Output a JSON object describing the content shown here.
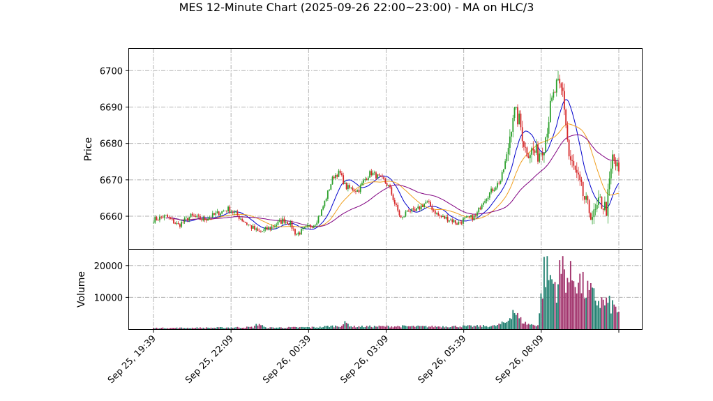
{
  "chart_data": {
    "type": "candlestick",
    "title": "MES 12-Minute Chart (2025-09-26 22:00~23:00) - MA on HLC/3",
    "price_panel": {
      "ylabel": "Price",
      "ylim": [
        6651,
        6706
      ],
      "yticks": [
        6660,
        6670,
        6680,
        6690,
        6700
      ],
      "grid": true
    },
    "volume_panel": {
      "ylabel": "Volume",
      "ylim": [
        0,
        25000
      ],
      "yticks": [
        10000,
        20000
      ],
      "grid": true
    },
    "xticks": [
      {
        "label": "Sep 25, 19:39",
        "index": 0
      },
      {
        "label": "Sep 25, 22:09",
        "index": 12.5
      },
      {
        "label": "Sep 26, 00:39",
        "index": 25
      },
      {
        "label": "Sep 26, 03:09",
        "index": 37.5
      },
      {
        "label": "Sep 26, 05:39",
        "index": 50
      },
      {
        "label": "Sep 26, 08:09",
        "index": 62.5
      },
      {
        "label": "",
        "index": 75
      }
    ],
    "colors": {
      "up": "#2ca02c",
      "down": "#d62728",
      "vol_up": "#1f7f6f",
      "vol_down": "#a0306a",
      "ma_fast": "#0000cc",
      "ma_mid": "#f0a020",
      "ma_slow": "#800080"
    },
    "close_path": [
      [
        0,
        6659
      ],
      [
        2,
        6660
      ],
      [
        4,
        6657.5
      ],
      [
        6,
        6660
      ],
      [
        8,
        6659
      ],
      [
        10,
        6660.5
      ],
      [
        12,
        6662
      ],
      [
        13,
        6661
      ],
      [
        15,
        6658
      ],
      [
        17,
        6655.5
      ],
      [
        19,
        6657
      ],
      [
        21,
        6659
      ],
      [
        22,
        6658
      ],
      [
        23,
        6655
      ],
      [
        25,
        6657
      ],
      [
        26,
        6658
      ],
      [
        27,
        6661
      ],
      [
        28,
        6666
      ],
      [
        29,
        6671
      ],
      [
        30,
        6672
      ],
      [
        31,
        6668
      ],
      [
        33,
        6667
      ],
      [
        34,
        6670
      ],
      [
        35,
        6672
      ],
      [
        36,
        6671
      ],
      [
        37,
        6670
      ],
      [
        38,
        6668
      ],
      [
        39,
        6663
      ],
      [
        40,
        6659
      ],
      [
        41,
        6662
      ],
      [
        42,
        6661
      ],
      [
        44,
        6664
      ],
      [
        45,
        6662
      ],
      [
        46,
        6660
      ],
      [
        48,
        6659
      ],
      [
        49,
        6658
      ],
      [
        50,
        6659
      ],
      [
        52,
        6660
      ],
      [
        53,
        6664
      ],
      [
        55,
        6668
      ],
      [
        56,
        6670
      ],
      [
        57,
        6677
      ],
      [
        58,
        6689
      ],
      [
        59,
        6686
      ],
      [
        60,
        6678
      ],
      [
        61,
        6678
      ],
      [
        62,
        6677
      ],
      [
        63,
        6680
      ],
      [
        64,
        6690
      ],
      [
        65,
        6696
      ],
      [
        66,
        6694
      ],
      [
        67,
        6676
      ],
      [
        68,
        6672
      ],
      [
        69,
        6667
      ],
      [
        70,
        6662
      ],
      [
        71,
        6660
      ],
      [
        72,
        6664
      ],
      [
        73,
        6662
      ],
      [
        74,
        6676
      ],
      [
        75,
        6672
      ]
    ],
    "volume_path": [
      [
        0,
        400
      ],
      [
        10,
        500
      ],
      [
        16,
        700
      ],
      [
        17,
        2000
      ],
      [
        18,
        500
      ],
      [
        27,
        700
      ],
      [
        28,
        1000
      ],
      [
        30,
        1100
      ],
      [
        31,
        2200
      ],
      [
        32,
        900
      ],
      [
        40,
        1000
      ],
      [
        44,
        900
      ],
      [
        50,
        1000
      ],
      [
        55,
        1100
      ],
      [
        57,
        2500
      ],
      [
        58,
        7000
      ],
      [
        59,
        3500
      ],
      [
        60,
        2000
      ],
      [
        61,
        1500
      ],
      [
        62,
        1500
      ],
      [
        63,
        21000
      ],
      [
        64,
        17500
      ],
      [
        65,
        15000
      ],
      [
        66,
        22000
      ],
      [
        67,
        17000
      ],
      [
        68,
        19000
      ],
      [
        69,
        15000
      ],
      [
        70,
        13000
      ],
      [
        71,
        11000
      ],
      [
        72,
        9500
      ],
      [
        73,
        9000
      ],
      [
        74,
        8000
      ],
      [
        75,
        6500
      ]
    ]
  }
}
